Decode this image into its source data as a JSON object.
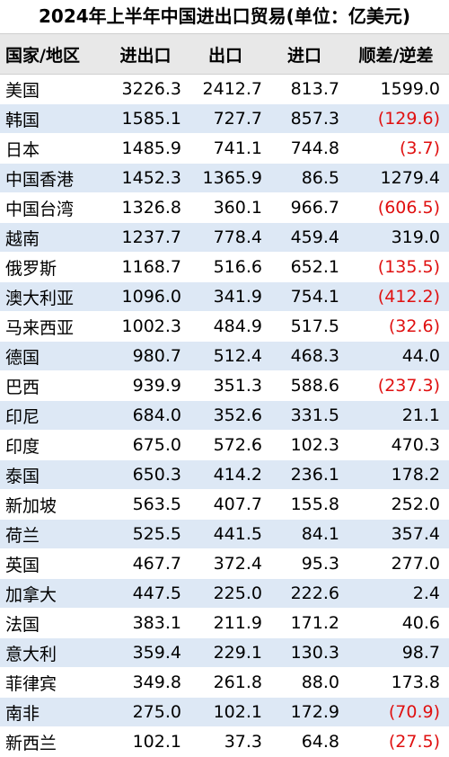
{
  "title": "2024年上半年中国进出口贸易(单位：亿美元)",
  "headers": [
    "国家/地区",
    "进出口",
    "出口",
    "进口",
    "顺差/逆差"
  ],
  "colors": {
    "header_bg": "#e8e8e8",
    "stripe_bg": "#dde8f5",
    "negative": "#e01010"
  },
  "rows": [
    {
      "country": "美国",
      "total": "3226.3",
      "export": "2412.7",
      "import": "813.7",
      "balance": "1599.0",
      "negative": false
    },
    {
      "country": "韩国",
      "total": "1585.1",
      "export": "727.7",
      "import": "857.3",
      "balance": "(129.6)",
      "negative": true
    },
    {
      "country": "日本",
      "total": "1485.9",
      "export": "741.1",
      "import": "744.8",
      "balance": "(3.7)",
      "negative": true
    },
    {
      "country": "中国香港",
      "total": "1452.3",
      "export": "1365.9",
      "import": "86.5",
      "balance": "1279.4",
      "negative": false
    },
    {
      "country": "中国台湾",
      "total": "1326.8",
      "export": "360.1",
      "import": "966.7",
      "balance": "(606.5)",
      "negative": true
    },
    {
      "country": "越南",
      "total": "1237.7",
      "export": "778.4",
      "import": "459.4",
      "balance": "319.0",
      "negative": false
    },
    {
      "country": "俄罗斯",
      "total": "1168.7",
      "export": "516.6",
      "import": "652.1",
      "balance": "(135.5)",
      "negative": true
    },
    {
      "country": "澳大利亚",
      "total": "1096.0",
      "export": "341.9",
      "import": "754.1",
      "balance": "(412.2)",
      "negative": true
    },
    {
      "country": "马来西亚",
      "total": "1002.3",
      "export": "484.9",
      "import": "517.5",
      "balance": "(32.6)",
      "negative": true
    },
    {
      "country": "德国",
      "total": "980.7",
      "export": "512.4",
      "import": "468.3",
      "balance": "44.0",
      "negative": false
    },
    {
      "country": "巴西",
      "total": "939.9",
      "export": "351.3",
      "import": "588.6",
      "balance": "(237.3)",
      "negative": true
    },
    {
      "country": "印尼",
      "total": "684.0",
      "export": "352.6",
      "import": "331.5",
      "balance": "21.1",
      "negative": false
    },
    {
      "country": "印度",
      "total": "675.0",
      "export": "572.6",
      "import": "102.3",
      "balance": "470.3",
      "negative": false
    },
    {
      "country": "泰国",
      "total": "650.3",
      "export": "414.2",
      "import": "236.1",
      "balance": "178.2",
      "negative": false
    },
    {
      "country": "新加坡",
      "total": "563.5",
      "export": "407.7",
      "import": "155.8",
      "balance": "252.0",
      "negative": false
    },
    {
      "country": "荷兰",
      "total": "525.5",
      "export": "441.5",
      "import": "84.1",
      "balance": "357.4",
      "negative": false
    },
    {
      "country": "英国",
      "total": "467.7",
      "export": "372.4",
      "import": "95.3",
      "balance": "277.0",
      "negative": false
    },
    {
      "country": "加拿大",
      "total": "447.5",
      "export": "225.0",
      "import": "222.6",
      "balance": "2.4",
      "negative": false
    },
    {
      "country": "法国",
      "total": "383.1",
      "export": "211.9",
      "import": "171.2",
      "balance": "40.6",
      "negative": false
    },
    {
      "country": "意大利",
      "total": "359.4",
      "export": "229.1",
      "import": "130.3",
      "balance": "98.7",
      "negative": false
    },
    {
      "country": "菲律宾",
      "total": "349.8",
      "export": "261.8",
      "import": "88.0",
      "balance": "173.8",
      "negative": false
    },
    {
      "country": "南非",
      "total": "275.0",
      "export": "102.1",
      "import": "172.9",
      "balance": "(70.9)",
      "negative": true
    },
    {
      "country": "新西兰",
      "total": "102.1",
      "export": "37.3",
      "import": "64.8",
      "balance": "(27.5)",
      "negative": true
    }
  ]
}
